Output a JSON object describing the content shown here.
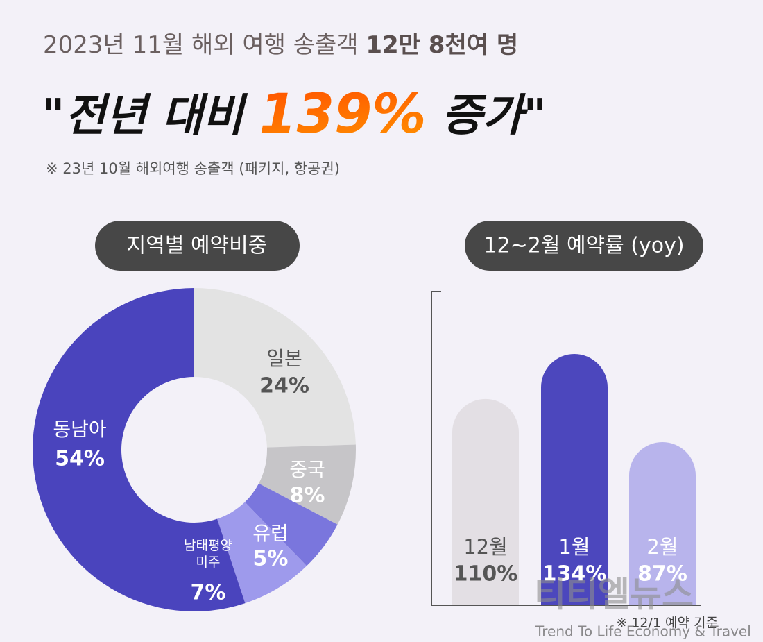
{
  "header": {
    "subtitle": "2023년 11월 해외 여행 송출객",
    "subtitle_bold": "12만 8천여 명",
    "headline_pre": "\"전년 대비",
    "headline_highlight": "139%",
    "headline_post": "증가\"",
    "note": "※ 23년 10월 해외여행 송출객 (패키지, 항공권)"
  },
  "chart_data": [
    {
      "type": "pie",
      "title": "지역별 예약비중",
      "categories": [
        "일본",
        "중국",
        "유럽",
        "남태평양 미주",
        "동남아"
      ],
      "values": [
        24,
        8,
        5,
        7,
        54
      ],
      "value_labels": [
        "24%",
        "8%",
        "5%",
        "7%",
        "54%"
      ],
      "colors": [
        "#e3e3e3",
        "#c6c5c8",
        "#7a76dd",
        "#9e9aec",
        "#4a44bd"
      ]
    },
    {
      "type": "bar",
      "title": "12~2월 예약률 (yoy)",
      "categories": [
        "12월",
        "1월",
        "2월"
      ],
      "values": [
        110,
        134,
        87
      ],
      "value_labels": [
        "110%",
        "134%",
        "87%"
      ],
      "colors": [
        "#e3dfe4",
        "#4c47bd",
        "#b8b4ec"
      ],
      "note": "※ 12/1 예약 기준"
    }
  ],
  "watermark": {
    "logo": "티티엘뉴스",
    "tagline": "Trend To Life Economy & Travel"
  }
}
